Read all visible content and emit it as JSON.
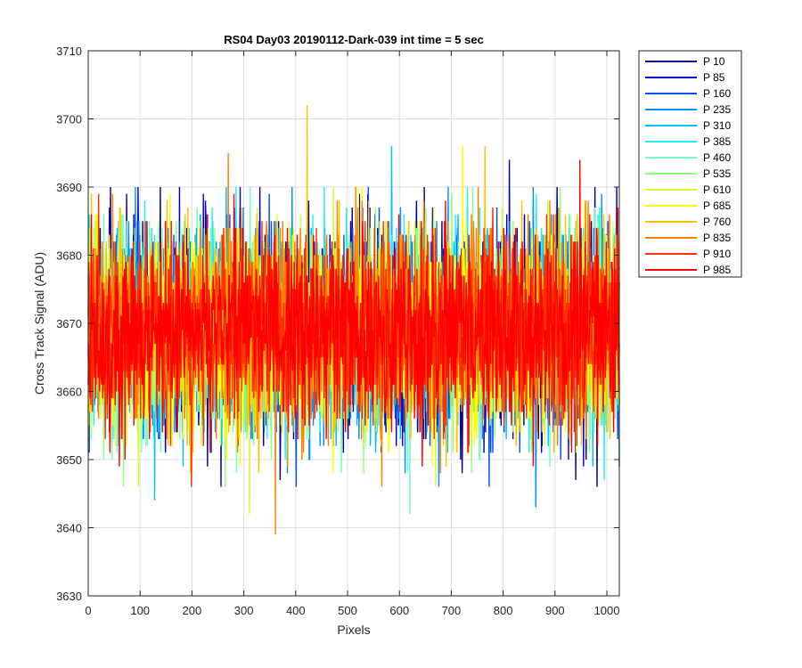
{
  "chart_data": {
    "type": "line",
    "title": "RS04 Day03 20190112-Dark-039 int time = 5 sec",
    "xlabel": "Pixels",
    "ylabel": "Cross Track Signal (ADU)",
    "xlim": [
      0,
      1024
    ],
    "ylim": [
      3630,
      3710
    ],
    "xticks": [
      0,
      100,
      200,
      300,
      400,
      500,
      600,
      700,
      800,
      900,
      1000
    ],
    "yticks": [
      3630,
      3640,
      3650,
      3660,
      3670,
      3680,
      3690,
      3700,
      3710
    ],
    "grid": true,
    "legend_location": "outside-top-right",
    "noise_mean": 3669,
    "noise_sigma": 7,
    "series": [
      {
        "name": "P 10",
        "color": "#00008f"
      },
      {
        "name": "P 85",
        "color": "#0000d6"
      },
      {
        "name": "P 160",
        "color": "#0050ff"
      },
      {
        "name": "P 235",
        "color": "#0090ff"
      },
      {
        "name": "P 310",
        "color": "#00c0ff"
      },
      {
        "name": "P 385",
        "color": "#20f0f0"
      },
      {
        "name": "P 460",
        "color": "#70ffc0"
      },
      {
        "name": "P 535",
        "color": "#90ff80"
      },
      {
        "name": "P 610",
        "color": "#d0ff30"
      },
      {
        "name": "P 685",
        "color": "#ffff00"
      },
      {
        "name": "P 760",
        "color": "#ffc000"
      },
      {
        "name": "P 835",
        "color": "#ff8000"
      },
      {
        "name": "P 910",
        "color": "#ff3000"
      },
      {
        "name": "P 985",
        "color": "#ff0000"
      }
    ],
    "annotated_extremes": [
      {
        "series": "P 760",
        "x": 422,
        "y": 3702
      },
      {
        "series": "P 835",
        "x": 361,
        "y": 3639
      },
      {
        "series": "P 835",
        "x": 270,
        "y": 3695
      },
      {
        "series": "P 310",
        "x": 585,
        "y": 3696
      },
      {
        "series": "P 685",
        "x": 722,
        "y": 3696
      },
      {
        "series": "P 760",
        "x": 765,
        "y": 3696
      },
      {
        "series": "P 610",
        "x": 311,
        "y": 3642
      },
      {
        "series": "P 460",
        "x": 620,
        "y": 3642
      },
      {
        "series": "P 235",
        "x": 863,
        "y": 3643
      },
      {
        "series": "P 310",
        "x": 128,
        "y": 3644
      },
      {
        "series": "P 985",
        "x": 948,
        "y": 3694
      },
      {
        "series": "P 85",
        "x": 812,
        "y": 3694
      }
    ]
  }
}
